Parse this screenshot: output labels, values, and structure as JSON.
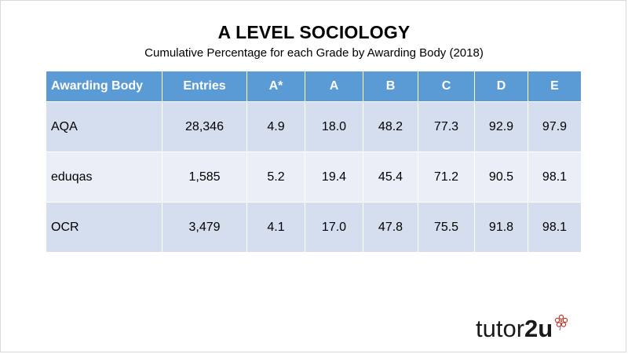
{
  "title": "A LEVEL SOCIOLOGY",
  "subtitle": "Cumulative Percentage for each Grade by Awarding Body (2018)",
  "table": {
    "headers": [
      "Awarding Body",
      "Entries",
      "A*",
      "A",
      "B",
      "C",
      "D",
      "E"
    ],
    "rows": [
      [
        "AQA",
        "28,346",
        "4.9",
        "18.0",
        "48.2",
        "77.3",
        "92.9",
        "97.9"
      ],
      [
        "eduqas",
        "1,585",
        "5.2",
        "19.4",
        "45.4",
        "71.2",
        "90.5",
        "98.1"
      ],
      [
        "OCR",
        "3,479",
        "4.1",
        "17.0",
        "47.8",
        "75.5",
        "91.8",
        "98.1"
      ]
    ]
  },
  "logo": {
    "prefix": "tutor",
    "suffix": "2u",
    "icon": "flower-icon"
  },
  "colors": {
    "header_bg": "#5b9bd5",
    "row_dark": "#d5deee",
    "row_light": "#eaeff7",
    "logo_accent": "#c0392b"
  }
}
